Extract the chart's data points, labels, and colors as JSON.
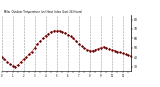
{
  "title": "Milw  Outdoor Temperature (vs) Heat Index (Last 24 Hours)",
  "background_color": "#ffffff",
  "plot_background": "#ffffff",
  "grid_color": "#999999",
  "line_color": "#dd0000",
  "dot_color": "#000000",
  "ylim": [
    25,
    85
  ],
  "ytick_values": [
    30,
    40,
    50,
    60,
    70,
    80
  ],
  "ytick_labels": [
    "30",
    "40",
    "50",
    "60",
    "70",
    "80"
  ],
  "temp_values": [
    40,
    38,
    35,
    33,
    31,
    30,
    32,
    35,
    38,
    40,
    43,
    46,
    50,
    54,
    57,
    60,
    63,
    65,
    67,
    68,
    68,
    68,
    67,
    66,
    64,
    62,
    60,
    57,
    54,
    52,
    50,
    48,
    47,
    47,
    48,
    49,
    50,
    51,
    50,
    49,
    48,
    47,
    46,
    45,
    44,
    43,
    42,
    41
  ],
  "num_xticks": 24,
  "vgrid_positions": [
    0,
    4,
    8,
    12,
    16,
    20,
    24,
    28,
    32,
    36,
    40,
    44,
    47
  ]
}
